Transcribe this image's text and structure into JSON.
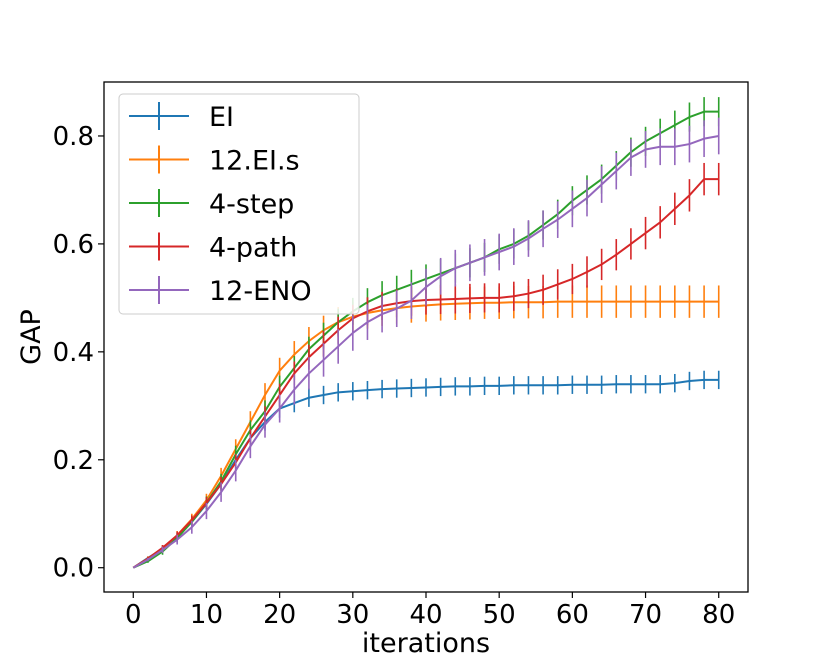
{
  "chart_data": {
    "type": "line",
    "title": "",
    "xlabel": "iterations",
    "ylabel": "GAP",
    "xlim": [
      -4,
      84
    ],
    "ylim": [
      -0.045,
      0.9
    ],
    "xticks": [
      0,
      10,
      20,
      30,
      40,
      50,
      60,
      70,
      80
    ],
    "xtick_labels": [
      "0",
      "10",
      "20",
      "30",
      "40",
      "50",
      "60",
      "70",
      "80"
    ],
    "yticks": [
      0.0,
      0.2,
      0.4,
      0.6,
      0.8
    ],
    "ytick_labels": [
      "0.0",
      "0.2",
      "0.4",
      "0.6",
      "0.8"
    ],
    "grid": false,
    "legend_position": "upper-left",
    "x": [
      0,
      2,
      4,
      6,
      8,
      10,
      12,
      14,
      16,
      18,
      20,
      22,
      24,
      26,
      28,
      30,
      32,
      34,
      36,
      38,
      40,
      42,
      44,
      46,
      48,
      50,
      52,
      54,
      56,
      58,
      60,
      62,
      64,
      66,
      68,
      70,
      72,
      74,
      76,
      78,
      80
    ],
    "series": [
      {
        "name": "EI",
        "color": "#1f77b4",
        "values": [
          0.0,
          0.018,
          0.035,
          0.058,
          0.085,
          0.118,
          0.155,
          0.2,
          0.24,
          0.27,
          0.295,
          0.305,
          0.315,
          0.32,
          0.325,
          0.327,
          0.329,
          0.331,
          0.332,
          0.333,
          0.334,
          0.335,
          0.336,
          0.336,
          0.337,
          0.337,
          0.338,
          0.338,
          0.338,
          0.338,
          0.339,
          0.339,
          0.339,
          0.34,
          0.34,
          0.34,
          0.34,
          0.342,
          0.346,
          0.348,
          0.348
        ],
        "errors": [
          0.0,
          0.003,
          0.005,
          0.007,
          0.008,
          0.01,
          0.012,
          0.014,
          0.015,
          0.016,
          0.017,
          0.017,
          0.017,
          0.017,
          0.017,
          0.017,
          0.017,
          0.017,
          0.017,
          0.017,
          0.017,
          0.017,
          0.017,
          0.017,
          0.017,
          0.017,
          0.017,
          0.017,
          0.017,
          0.017,
          0.017,
          0.017,
          0.017,
          0.017,
          0.017,
          0.017,
          0.017,
          0.017,
          0.017,
          0.017,
          0.017
        ]
      },
      {
        "name": "12.EI.s",
        "color": "#ff7f0e",
        "values": [
          0.0,
          0.017,
          0.036,
          0.06,
          0.09,
          0.125,
          0.17,
          0.22,
          0.27,
          0.32,
          0.365,
          0.395,
          0.42,
          0.44,
          0.455,
          0.465,
          0.472,
          0.477,
          0.481,
          0.484,
          0.486,
          0.488,
          0.489,
          0.49,
          0.491,
          0.491,
          0.492,
          0.492,
          0.492,
          0.493,
          0.493,
          0.493,
          0.493,
          0.493,
          0.493,
          0.493,
          0.493,
          0.493,
          0.493,
          0.493,
          0.493
        ],
        "errors": [
          0.0,
          0.004,
          0.006,
          0.008,
          0.01,
          0.012,
          0.015,
          0.018,
          0.02,
          0.022,
          0.024,
          0.025,
          0.026,
          0.027,
          0.028,
          0.028,
          0.029,
          0.029,
          0.029,
          0.03,
          0.03,
          0.03,
          0.03,
          0.03,
          0.03,
          0.03,
          0.03,
          0.03,
          0.03,
          0.03,
          0.03,
          0.03,
          0.03,
          0.03,
          0.03,
          0.03,
          0.03,
          0.03,
          0.03,
          0.03,
          0.03
        ]
      },
      {
        "name": "4-step",
        "color": "#2ca02c",
        "values": [
          0.0,
          0.012,
          0.03,
          0.055,
          0.085,
          0.12,
          0.16,
          0.21,
          0.255,
          0.29,
          0.335,
          0.37,
          0.405,
          0.43,
          0.455,
          0.475,
          0.492,
          0.505,
          0.515,
          0.525,
          0.535,
          0.545,
          0.555,
          0.565,
          0.575,
          0.59,
          0.6,
          0.615,
          0.635,
          0.655,
          0.68,
          0.7,
          0.72,
          0.745,
          0.77,
          0.79,
          0.805,
          0.82,
          0.835,
          0.845,
          0.845
        ],
        "errors": [
          0.0,
          0.003,
          0.006,
          0.008,
          0.01,
          0.012,
          0.014,
          0.016,
          0.018,
          0.02,
          0.021,
          0.022,
          0.023,
          0.024,
          0.025,
          0.025,
          0.026,
          0.026,
          0.026,
          0.027,
          0.027,
          0.027,
          0.027,
          0.027,
          0.027,
          0.027,
          0.027,
          0.027,
          0.027,
          0.027,
          0.027,
          0.027,
          0.027,
          0.027,
          0.027,
          0.027,
          0.027,
          0.027,
          0.027,
          0.027,
          0.027
        ]
      },
      {
        "name": "4-path",
        "color": "#d62728",
        "values": [
          0.0,
          0.017,
          0.037,
          0.06,
          0.088,
          0.12,
          0.155,
          0.195,
          0.24,
          0.28,
          0.32,
          0.36,
          0.39,
          0.415,
          0.44,
          0.462,
          0.475,
          0.485,
          0.49,
          0.494,
          0.496,
          0.497,
          0.498,
          0.499,
          0.5,
          0.5,
          0.503,
          0.508,
          0.515,
          0.525,
          0.535,
          0.548,
          0.562,
          0.58,
          0.6,
          0.62,
          0.64,
          0.665,
          0.69,
          0.72,
          0.72
        ],
        "errors": [
          0.0,
          0.003,
          0.005,
          0.007,
          0.009,
          0.011,
          0.013,
          0.015,
          0.017,
          0.019,
          0.021,
          0.022,
          0.023,
          0.024,
          0.025,
          0.025,
          0.026,
          0.026,
          0.026,
          0.027,
          0.027,
          0.027,
          0.027,
          0.027,
          0.027,
          0.027,
          0.027,
          0.027,
          0.028,
          0.028,
          0.028,
          0.029,
          0.029,
          0.029,
          0.029,
          0.03,
          0.03,
          0.03,
          0.03,
          0.03,
          0.03
        ]
      },
      {
        "name": "12-ENO",
        "color": "#9467bd",
        "values": [
          0.0,
          0.015,
          0.033,
          0.052,
          0.075,
          0.105,
          0.14,
          0.18,
          0.225,
          0.265,
          0.295,
          0.33,
          0.36,
          0.385,
          0.41,
          0.435,
          0.455,
          0.47,
          0.48,
          0.495,
          0.52,
          0.54,
          0.555,
          0.565,
          0.575,
          0.585,
          0.595,
          0.61,
          0.628,
          0.645,
          0.665,
          0.685,
          0.71,
          0.735,
          0.76,
          0.775,
          0.78,
          0.78,
          0.785,
          0.795,
          0.8
        ],
        "errors": [
          0.0,
          0.003,
          0.006,
          0.009,
          0.012,
          0.015,
          0.018,
          0.02,
          0.022,
          0.024,
          0.026,
          0.028,
          0.03,
          0.031,
          0.032,
          0.033,
          0.033,
          0.034,
          0.034,
          0.034,
          0.034,
          0.034,
          0.034,
          0.034,
          0.034,
          0.034,
          0.034,
          0.034,
          0.034,
          0.034,
          0.034,
          0.034,
          0.034,
          0.034,
          0.034,
          0.034,
          0.034,
          0.034,
          0.034,
          0.034,
          0.034
        ]
      }
    ]
  }
}
